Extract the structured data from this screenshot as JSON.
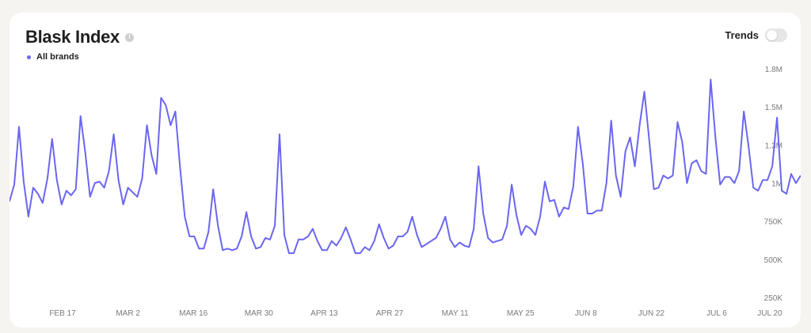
{
  "header": {
    "title": "Blask Index",
    "info_icon": "info-icon",
    "trends_label": "Trends",
    "trends_on": false
  },
  "legend": {
    "label": "All brands",
    "color": "#6b66f0"
  },
  "chart_data": {
    "type": "line",
    "title": "Blask Index",
    "xlabel": "",
    "ylabel": "",
    "x_ticks": [
      "FEB 17",
      "MAR 2",
      "MAR 16",
      "MAR 30",
      "APR 13",
      "APR 27",
      "MAY 11",
      "MAY 25",
      "JUN 8",
      "JUN 22",
      "JUL 6",
      "JUL 20"
    ],
    "y_ticks": [
      "250K",
      "500K",
      "750K",
      "1M",
      "1.3M",
      "1.5M",
      "1.8M"
    ],
    "ylim": [
      250000,
      1750000
    ],
    "grid": false,
    "legend_position": "top-left",
    "color": "#6b66f0",
    "series": [
      {
        "name": "All brands",
        "values": [
          880000,
          990000,
          1370000,
          1010000,
          780000,
          970000,
          930000,
          870000,
          1030000,
          1290000,
          1020000,
          860000,
          950000,
          920000,
          960000,
          1440000,
          1200000,
          910000,
          1000000,
          1010000,
          970000,
          1080000,
          1320000,
          1020000,
          860000,
          970000,
          940000,
          910000,
          1030000,
          1380000,
          1180000,
          1060000,
          1560000,
          1510000,
          1380000,
          1470000,
          1100000,
          780000,
          650000,
          650000,
          570000,
          570000,
          680000,
          960000,
          720000,
          560000,
          570000,
          560000,
          570000,
          650000,
          810000,
          650000,
          570000,
          580000,
          640000,
          630000,
          720000,
          1320000,
          660000,
          540000,
          540000,
          630000,
          630000,
          650000,
          700000,
          620000,
          560000,
          560000,
          620000,
          590000,
          640000,
          710000,
          630000,
          540000,
          540000,
          580000,
          560000,
          620000,
          730000,
          640000,
          570000,
          590000,
          650000,
          650000,
          680000,
          780000,
          660000,
          580000,
          600000,
          620000,
          640000,
          700000,
          780000,
          630000,
          580000,
          610000,
          590000,
          580000,
          700000,
          1110000,
          800000,
          640000,
          610000,
          620000,
          630000,
          720000,
          990000,
          790000,
          660000,
          720000,
          700000,
          660000,
          780000,
          1010000,
          880000,
          890000,
          780000,
          840000,
          830000,
          980000,
          1370000,
          1130000,
          800000,
          800000,
          820000,
          820000,
          1000000,
          1410000,
          1050000,
          910000,
          1210000,
          1300000,
          1110000,
          1380000,
          1600000,
          1290000,
          960000,
          970000,
          1050000,
          1030000,
          1050000,
          1400000,
          1270000,
          1000000,
          1130000,
          1150000,
          1080000,
          1060000,
          1680000,
          1300000,
          990000,
          1040000,
          1040000,
          1000000,
          1080000,
          1470000,
          1240000,
          970000,
          950000,
          1020000,
          1020000,
          1110000,
          1430000,
          950000,
          930000,
          1060000,
          1000000,
          1050000
        ]
      }
    ]
  }
}
